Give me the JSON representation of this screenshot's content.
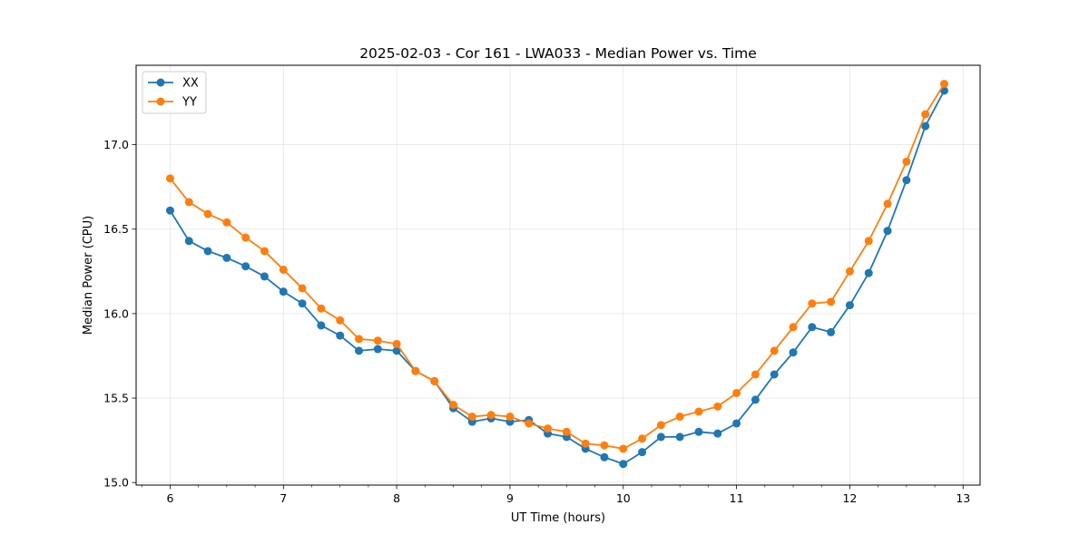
{
  "chart_data": {
    "type": "line",
    "title": "2025-02-03 - Cor 161 - LWA033 - Median Power vs. Time",
    "xlabel": "UT Time (hours)",
    "ylabel": "Median Power (CPU)",
    "xlim": [
      5.7,
      13.15
    ],
    "ylim": [
      14.985,
      17.47
    ],
    "xticks": [
      6,
      7,
      8,
      9,
      10,
      11,
      12,
      13
    ],
    "yticks": [
      15.0,
      15.5,
      16.0,
      16.5,
      17.0
    ],
    "ytick_labels": [
      "15.0",
      "15.5",
      "16.0",
      "16.5",
      "17.0"
    ],
    "grid": true,
    "legend_position": "top-left",
    "x": [
      6.0,
      6.1667,
      6.3333,
      6.5,
      6.6667,
      6.8333,
      7.0,
      7.1667,
      7.3333,
      7.5,
      7.6667,
      7.8333,
      8.0,
      8.1667,
      8.3333,
      8.5,
      8.6667,
      8.8333,
      9.0,
      9.1667,
      9.3333,
      9.5,
      9.6667,
      9.8333,
      10.0,
      10.1667,
      10.3333,
      10.5,
      10.6667,
      10.8333,
      11.0,
      11.1667,
      11.3333,
      11.5,
      11.6667,
      11.8333,
      12.0,
      12.1667,
      12.3333,
      12.5,
      12.6667,
      12.8333
    ],
    "series": [
      {
        "name": "XX",
        "color": "#1f77b4",
        "values": [
          16.61,
          16.43,
          16.37,
          16.33,
          16.28,
          16.22,
          16.13,
          16.06,
          15.93,
          15.87,
          15.78,
          15.79,
          15.78,
          15.66,
          15.6,
          15.44,
          15.36,
          15.38,
          15.36,
          15.37,
          15.29,
          15.27,
          15.2,
          15.15,
          15.11,
          15.18,
          15.27,
          15.27,
          15.3,
          15.29,
          15.35,
          15.49,
          15.64,
          15.77,
          15.92,
          15.89,
          16.05,
          16.24,
          16.49,
          16.79,
          17.11,
          17.32
        ]
      },
      {
        "name": "YY",
        "color": "#ff7f0e",
        "values": [
          16.8,
          16.66,
          16.59,
          16.54,
          16.45,
          16.37,
          16.26,
          16.15,
          16.03,
          15.96,
          15.85,
          15.84,
          15.82,
          15.66,
          15.6,
          15.46,
          15.39,
          15.4,
          15.39,
          15.35,
          15.32,
          15.3,
          15.23,
          15.22,
          15.2,
          15.26,
          15.34,
          15.39,
          15.42,
          15.45,
          15.53,
          15.64,
          15.78,
          15.92,
          16.06,
          16.07,
          16.25,
          16.43,
          16.65,
          16.9,
          17.18,
          17.36
        ]
      }
    ]
  }
}
